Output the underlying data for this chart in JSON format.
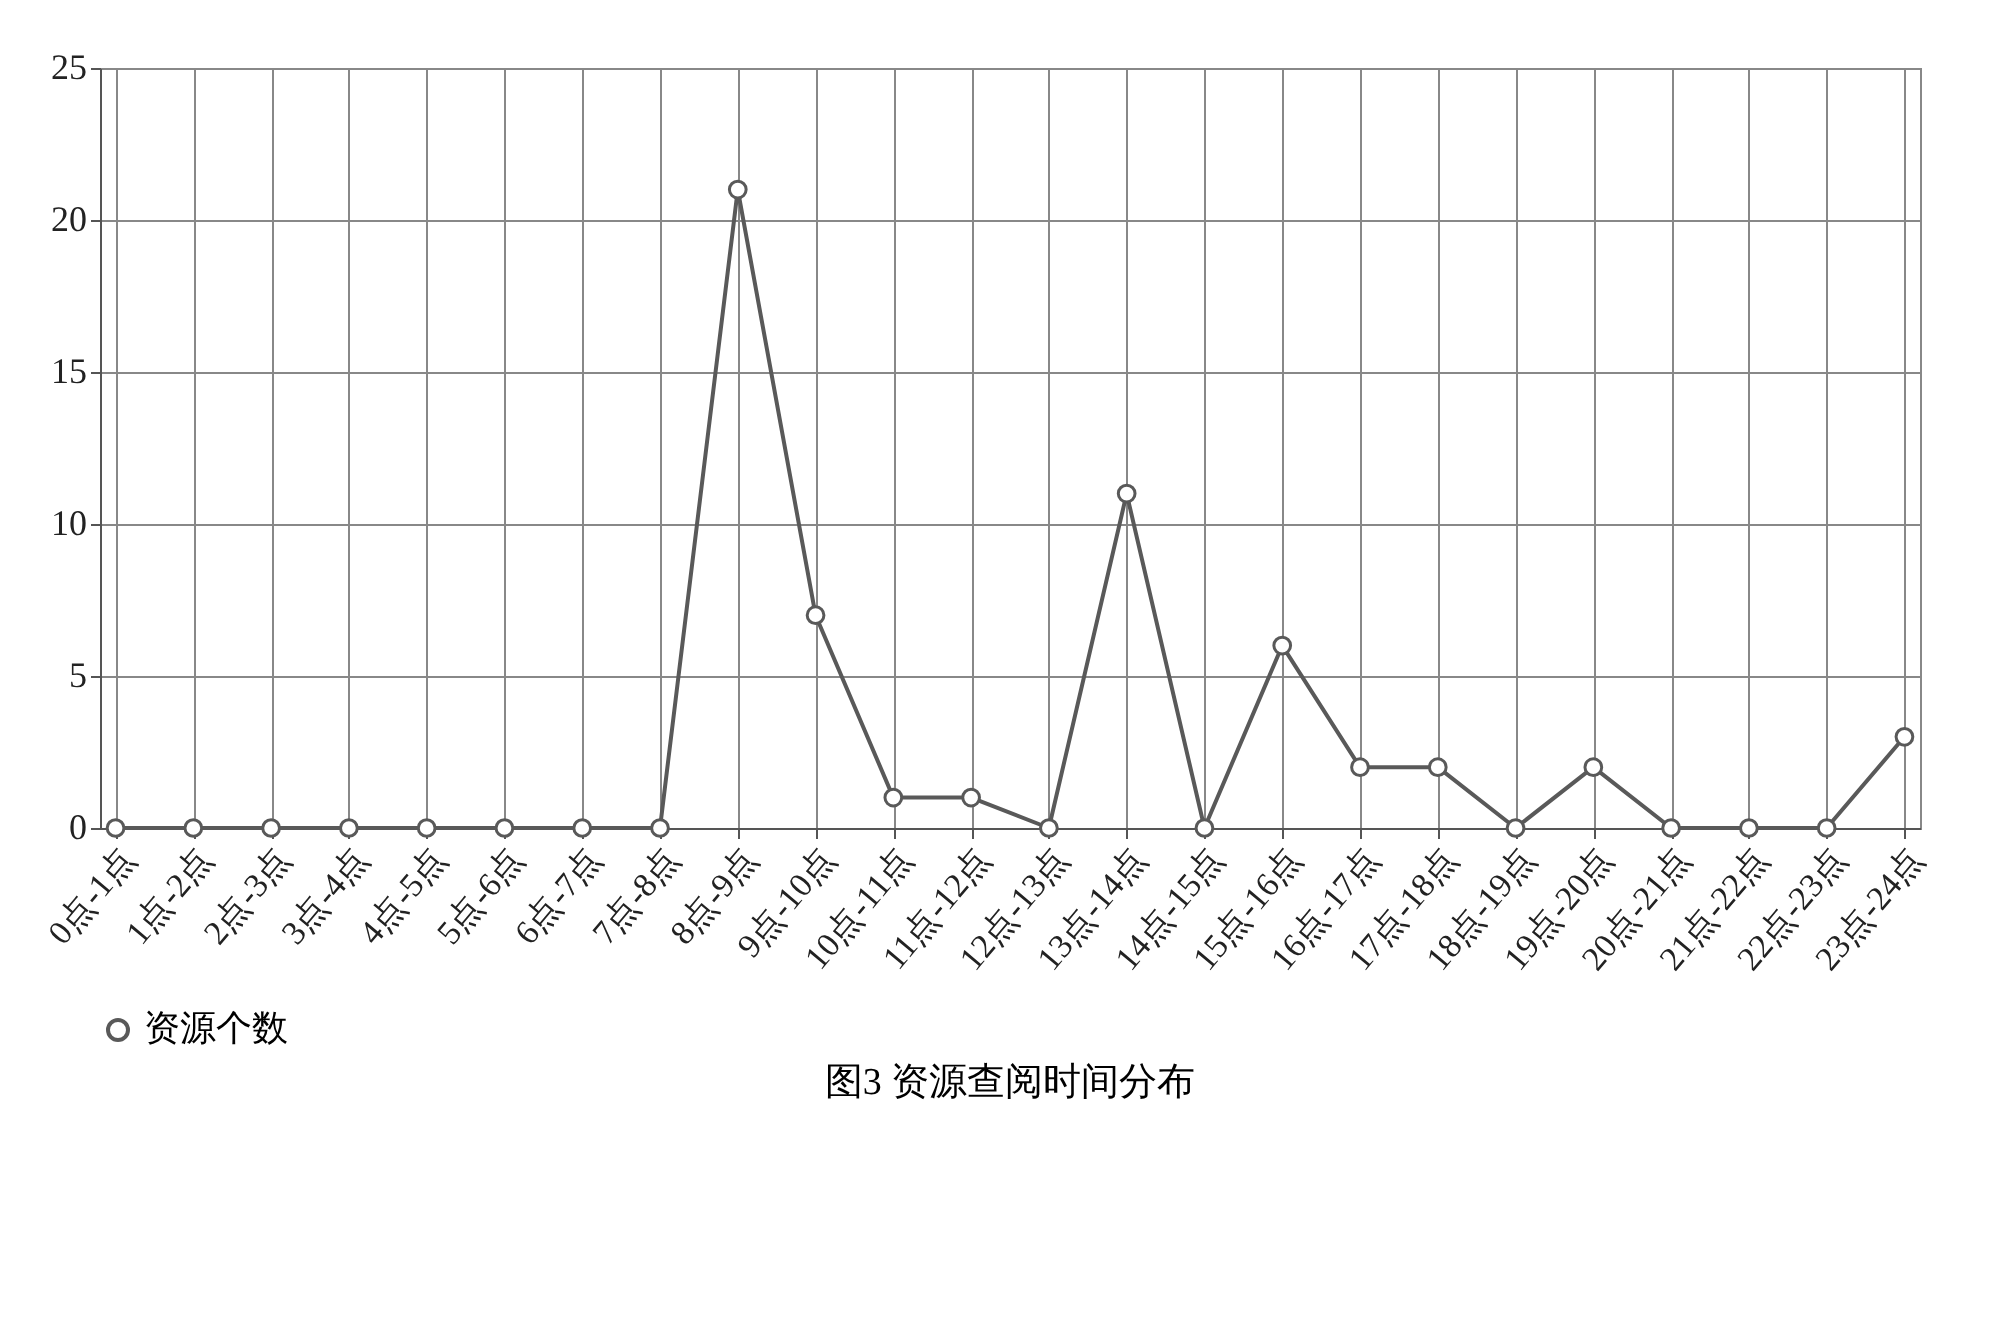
{
  "chart_data": {
    "type": "line",
    "categories": [
      "0点-1点",
      "1点-2点",
      "2点-3点",
      "3点-4点",
      "4点-5点",
      "5点-6点",
      "6点-7点",
      "7点-8点",
      "8点-9点",
      "9点-10点",
      "10点-11点",
      "11点-12点",
      "12点-13点",
      "13点-14点",
      "14点-15点",
      "15点-16点",
      "16点-17点",
      "17点-18点",
      "18点-19点",
      "19点-20点",
      "20点-21点",
      "21点-22点",
      "22点-23点",
      "23点-24点"
    ],
    "series": [
      {
        "name": "资源个数",
        "color": "#595959",
        "values": [
          0,
          0,
          0,
          0,
          0,
          0,
          0,
          0,
          21,
          7,
          1,
          1,
          0,
          11,
          0,
          6,
          2,
          2,
          0,
          2,
          0,
          0,
          0,
          3
        ]
      }
    ],
    "ylim": [
      0,
      25
    ],
    "yticks": [
      0,
      5,
      10,
      15,
      20,
      25
    ],
    "grid": true,
    "legend": "bottom",
    "marker": "circle",
    "line_style": "solid",
    "annotations": [
      "图3 资源查阅时间分布"
    ]
  }
}
